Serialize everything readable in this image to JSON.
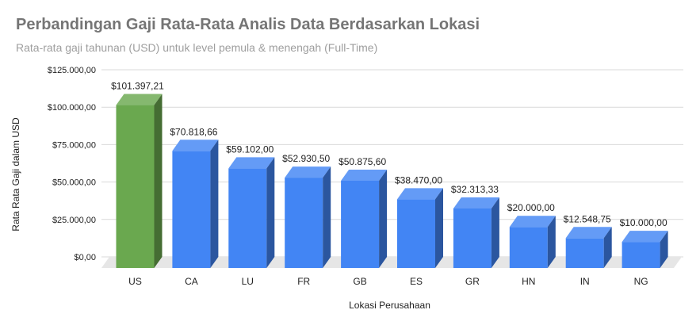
{
  "chart_data": {
    "type": "bar",
    "title": "Perbandingan Gaji Rata-Rata Analis Data Berdasarkan Lokasi",
    "subtitle": "Rata-rata gaji tahunan (USD) untuk level pemula & menengah (Full-Time)",
    "xlabel": "Lokasi Perusahaan",
    "ylabel": "Rata Rata Gaji dalam USD",
    "ylim": [
      0,
      125000
    ],
    "yticks": [
      {
        "value": 0,
        "label": "$0,00"
      },
      {
        "value": 25000,
        "label": "$25.000,00"
      },
      {
        "value": 50000,
        "label": "$50.000,00"
      },
      {
        "value": 75000,
        "label": "$75.000,00"
      },
      {
        "value": 100000,
        "label": "$100.000,00"
      },
      {
        "value": 125000,
        "label": "$125.000,00"
      }
    ],
    "grid": true,
    "three_d": true,
    "categories": [
      "US",
      "CA",
      "LU",
      "FR",
      "GB",
      "ES",
      "GR",
      "HN",
      "IN",
      "NG"
    ],
    "values": [
      101397.21,
      70818.66,
      59102.0,
      52930.5,
      50875.6,
      38470.0,
      32313.33,
      20000.0,
      12548.75,
      10000.0
    ],
    "data_labels": [
      "$101.397,21",
      "$70.818,66",
      "$59.102,00",
      "$52.930,50",
      "$50.875,60",
      "$38.470,00",
      "$32.313,33",
      "$20.000,00",
      "$12.548,75",
      "$10.000,00"
    ],
    "colors": {
      "default": "#4285f4",
      "highlight": "#6aa84f",
      "highlight_category": "US"
    }
  }
}
